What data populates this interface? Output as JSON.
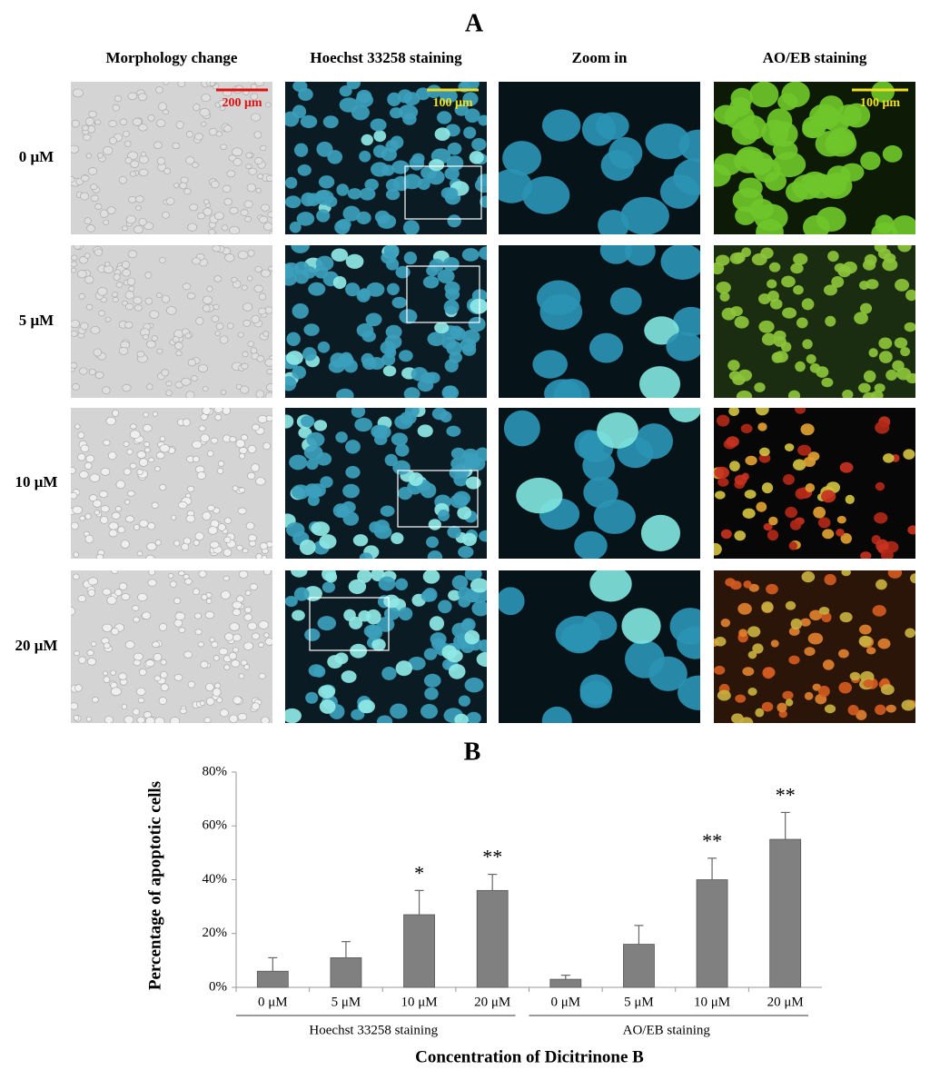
{
  "figure": {
    "panel_a": {
      "title": "A",
      "columns": [
        "Morphology change",
        "Hoechst 33258 staining",
        "Zoom in",
        "AO/EB staining"
      ],
      "rows": [
        "0 μM",
        "5 μM",
        "10 μM",
        "20 μM"
      ],
      "scale_bars": [
        "200 μm",
        "100 μm",
        "100 μm"
      ]
    }
  },
  "chart_data": {
    "type": "bar",
    "title": "B",
    "categories": [
      "0 μM",
      "5 μM",
      "10 μM",
      "20 μM",
      "0 μM",
      "5 μM",
      "10 μM",
      "20 μM"
    ],
    "groups": [
      "Hoechst 33258 staining",
      "AO/EB staining"
    ],
    "values": [
      6,
      11,
      27,
      36,
      3,
      16,
      40,
      55
    ],
    "errors": [
      5,
      6,
      9,
      6,
      1.5,
      7,
      8,
      10
    ],
    "color": "#808080",
    "annotations": [
      {
        "category": 2,
        "text": "*"
      },
      {
        "category": 3,
        "text": "**"
      },
      {
        "category": 6,
        "text": "**"
      },
      {
        "category": 7,
        "text": "**"
      }
    ],
    "ylim": [
      0,
      80
    ],
    "yticks": [
      {
        "value": 0,
        "label": "0%"
      },
      {
        "value": 20,
        "label": "20%"
      },
      {
        "value": 40,
        "label": "40%"
      },
      {
        "value": 60,
        "label": "60%"
      },
      {
        "value": 80,
        "label": "80%"
      }
    ],
    "xlabel": "Concentration of Dicitrinone B",
    "ylabel": "Percentage of apoptotic cells"
  }
}
